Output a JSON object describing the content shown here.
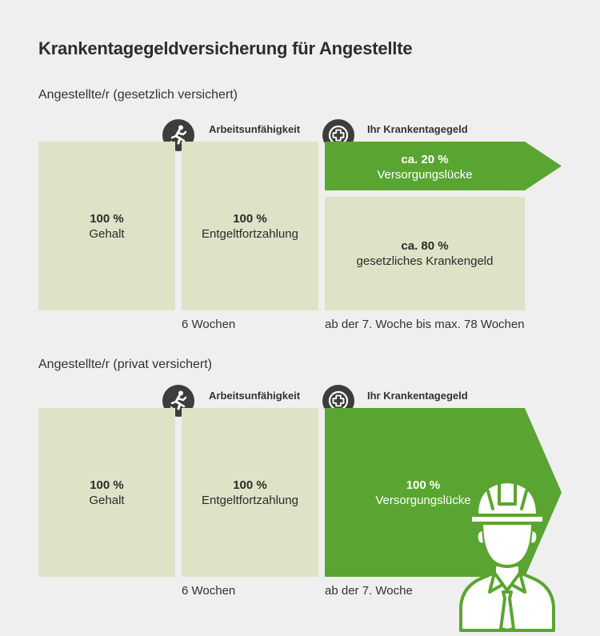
{
  "title": "Krankentagegeldversicherung für Angestellte",
  "colors": {
    "green": "#5aa531",
    "light": "#dde3c6",
    "dark": "#3d3d3d"
  },
  "section1": {
    "label": "Angestellte/r (gesetzlich versichert)",
    "headers": {
      "incapacity": {
        "icon": "fallen-person-icon",
        "label": "Arbeitsunfähigkeit"
      },
      "sick_pay": {
        "icon": "medical-cross-icon",
        "label": "Ihr Krankentagegeld"
      }
    },
    "salary": {
      "pct": "100 %",
      "label": "Gehalt"
    },
    "continued_pay": {
      "pct": "100 %",
      "label": "Entgeltfortzahlung"
    },
    "gap": {
      "pct": "ca. 20 %",
      "label": "Versorgungslücke"
    },
    "statutory": {
      "pct": "ca. 80 %",
      "label": "gesetzliches Krankengeld"
    },
    "timeline": {
      "weeks6": "6 Wochen",
      "from7": "ab der 7. Woche bis max. 78 Wochen"
    }
  },
  "section2": {
    "label": "Angestellte/r (privat versichert)",
    "headers": {
      "incapacity": {
        "icon": "fallen-person-icon",
        "label": "Arbeitsunfähigkeit"
      },
      "sick_pay": {
        "icon": "medical-cross-icon",
        "label": "Ihr Krankentagegeld"
      }
    },
    "salary": {
      "pct": "100 %",
      "label": "Gehalt"
    },
    "continued_pay": {
      "pct": "100 %",
      "label": "Entgeltfortzahlung"
    },
    "gap": {
      "pct": "100 %",
      "label": "Versorgungslücke"
    },
    "timeline": {
      "weeks6": "6 Wochen",
      "from7": "ab der 7. Woche"
    }
  },
  "illustration": {
    "icon": "construction-worker-icon"
  }
}
